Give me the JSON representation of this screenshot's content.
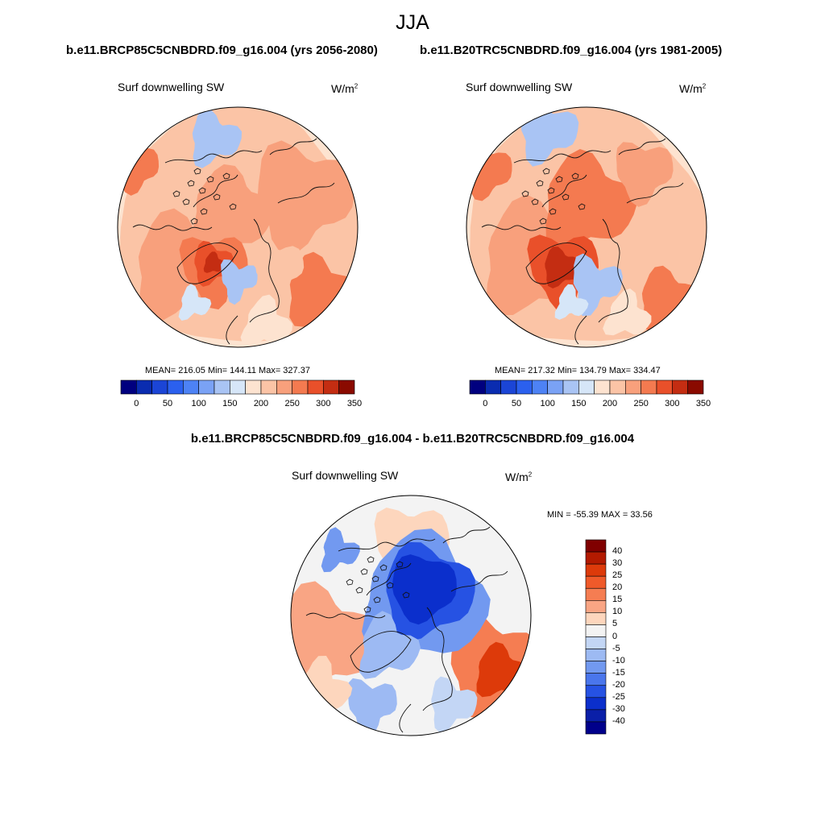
{
  "season": "JJA",
  "case_a": "b.e11.BRCP85C5CNBDRD.f09_g16.004 (yrs 2056-2080)",
  "case_b": "b.e11.B20TRC5CNBDRD.f09_g16.004 (yrs 1981-2005)",
  "diff_title": "b.e11.BRCP85C5CNBDRD.f09_g16.004 - b.e11.B20TRC5CNBDRD.f09_g16.004",
  "panels": [
    {
      "variable": "Surf downwelling SW",
      "unit_base": "W/m",
      "unit_exp": "2",
      "stats": "MEAN= 216.05  Min= 144.11  Max= 327.37"
    },
    {
      "variable": "Surf downwelling SW",
      "unit_base": "W/m",
      "unit_exp": "2",
      "stats": "MEAN= 217.32  Min= 134.79  Max= 334.47"
    },
    {
      "variable": "Surf downwelling SW",
      "unit_base": "W/m",
      "unit_exp": "2",
      "stats": "MIN = -55.39 MAX =  33.56"
    }
  ],
  "chart_data": [
    {
      "type": "heatmap",
      "projection": "north polar stereographic",
      "title": "b.e11.BRCP85C5CNBDRD.f09_g16.004 (yrs 2056-2080)",
      "variable": "Surf downwelling SW",
      "units": "W/m2",
      "mean": 216.05,
      "min": 144.11,
      "max": 327.37,
      "colorbar_levels": [
        0,
        25,
        50,
        75,
        100,
        125,
        150,
        175,
        200,
        225,
        250,
        275,
        300,
        325,
        350
      ],
      "colorbar_ticks": [
        "0",
        "50",
        "100",
        "150",
        "200",
        "250",
        "300",
        "350"
      ],
      "colors": [
        "#00007f",
        "#0a2cb0",
        "#1b45d6",
        "#2b60ee",
        "#4d82f5",
        "#7aa2f5",
        "#a9c4f4",
        "#d6e6f8",
        "#fde3d0",
        "#fbc4a6",
        "#f8a07c",
        "#f47a50",
        "#e9502a",
        "#c42d12",
        "#8a0a00"
      ]
    },
    {
      "type": "heatmap",
      "projection": "north polar stereographic",
      "title": "b.e11.B20TRC5CNBDRD.f09_g16.004 (yrs 1981-2005)",
      "variable": "Surf downwelling SW",
      "units": "W/m2",
      "mean": 217.32,
      "min": 134.79,
      "max": 334.47,
      "colorbar_levels": [
        0,
        25,
        50,
        75,
        100,
        125,
        150,
        175,
        200,
        225,
        250,
        275,
        300,
        325,
        350
      ],
      "colorbar_ticks": [
        "0",
        "50",
        "100",
        "150",
        "200",
        "250",
        "300",
        "350"
      ],
      "colors": [
        "#00007f",
        "#0a2cb0",
        "#1b45d6",
        "#2b60ee",
        "#4d82f5",
        "#7aa2f5",
        "#a9c4f4",
        "#d6e6f8",
        "#fde3d0",
        "#fbc4a6",
        "#f8a07c",
        "#f47a50",
        "#e9502a",
        "#c42d12",
        "#8a0a00"
      ]
    },
    {
      "type": "heatmap",
      "projection": "north polar stereographic",
      "title": "b.e11.BRCP85C5CNBDRD.f09_g16.004 - b.e11.B20TRC5CNBDRD.f09_g16.004",
      "variable": "Surf downwelling SW",
      "units": "W/m2",
      "min": -55.39,
      "max": 33.56,
      "colorbar_labels": [
        "40",
        "30",
        "25",
        "20",
        "15",
        "10",
        "5",
        "0",
        "-5",
        "-10",
        "-15",
        "-20",
        "-25",
        "-30",
        "-40"
      ],
      "colors": [
        "#800000",
        "#b31a00",
        "#dd3a0a",
        "#f05a2a",
        "#f57d52",
        "#f9a584",
        "#fdd6bd",
        "#f3f3f3",
        "#c3d6f5",
        "#9dbaf3",
        "#7299f0",
        "#4a76ec",
        "#2652e3",
        "#0b2fcc",
        "#0a1fa8",
        "#00008b"
      ]
    }
  ]
}
